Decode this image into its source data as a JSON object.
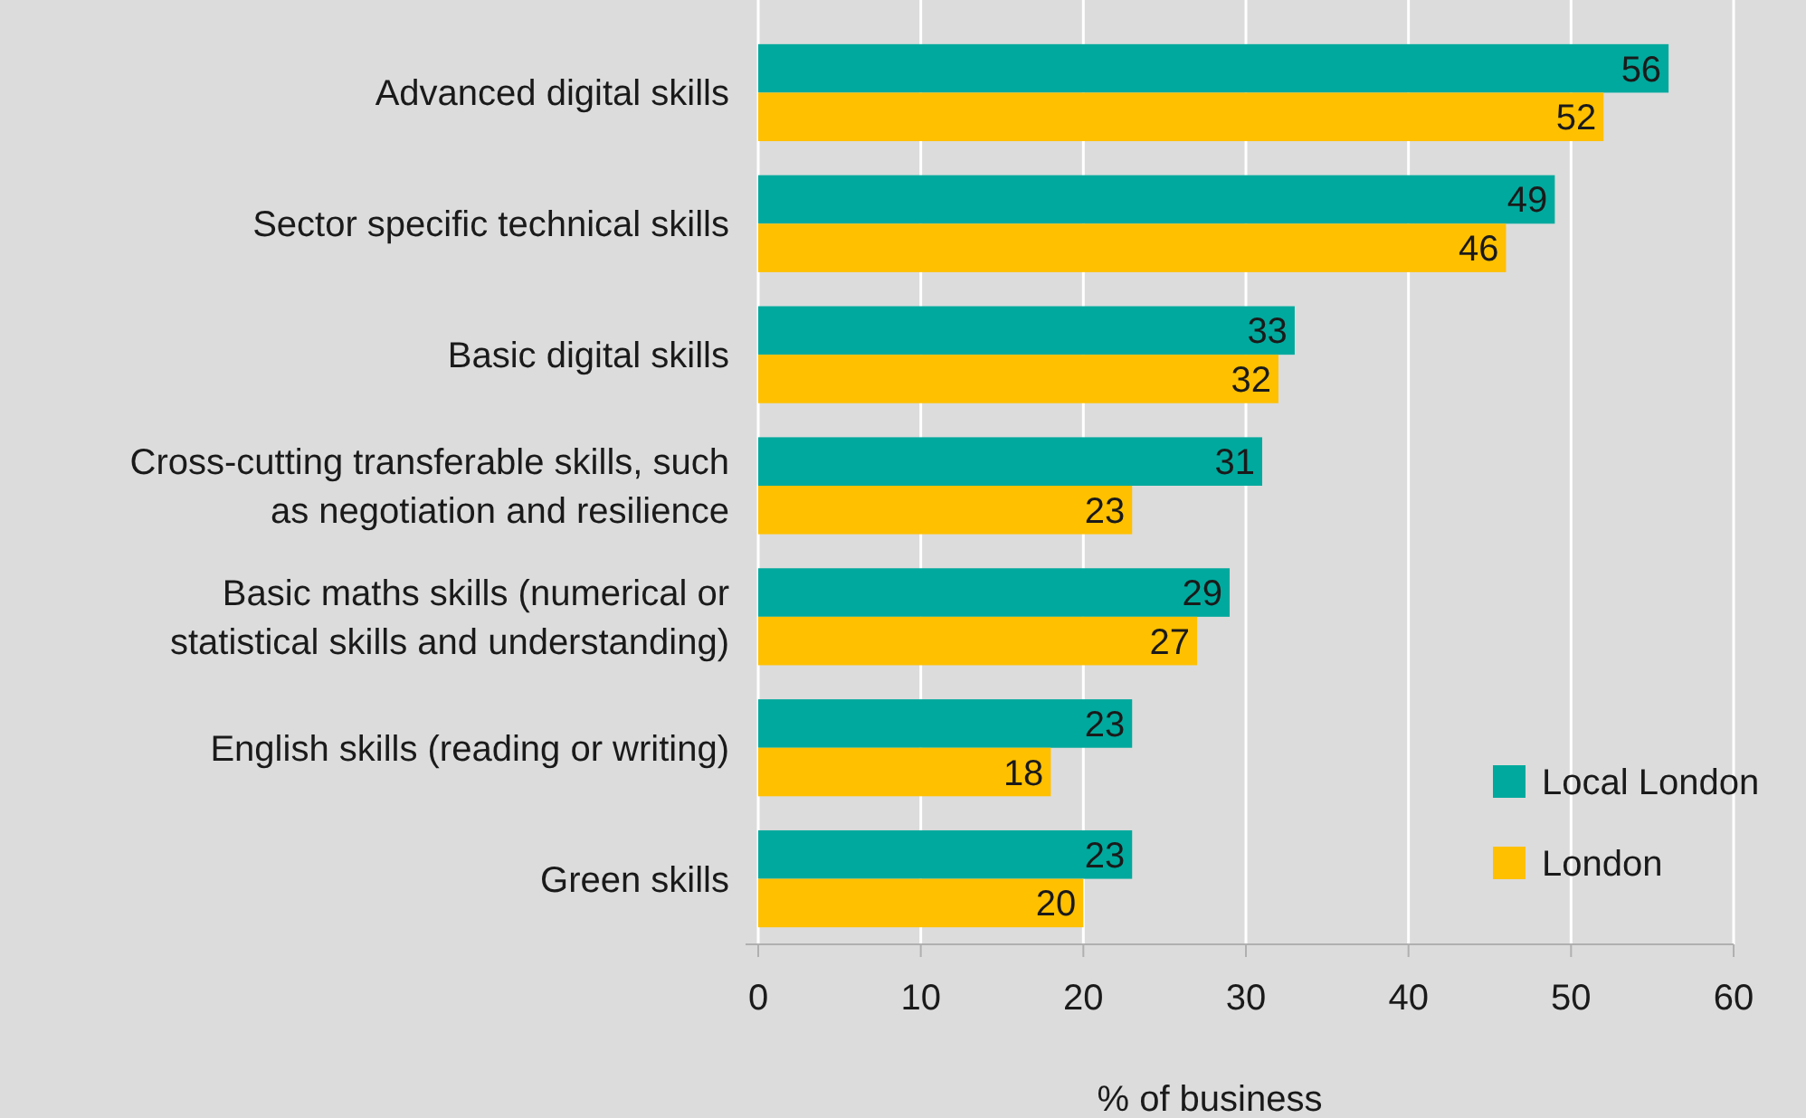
{
  "chart_data": {
    "type": "bar",
    "orientation": "horizontal",
    "xlabel": "% of business",
    "categories": [
      "Advanced digital skills",
      "Sector specific technical skills",
      "Basic digital skills",
      "Cross-cutting transferable skills, such as negotiation and resilience",
      "Basic maths skills (numerical or statistical skills and understanding)",
      "English skills (reading or writing)",
      "Green skills"
    ],
    "series": [
      {
        "name": "Local London",
        "color": "#00a99d",
        "values": [
          56,
          49,
          33,
          31,
          29,
          23,
          23
        ]
      },
      {
        "name": "London",
        "color": "#ffc000",
        "values": [
          52,
          46,
          32,
          23,
          27,
          18,
          20
        ]
      }
    ],
    "xlim": [
      0,
      60
    ],
    "xticks": [
      0,
      10,
      20,
      30,
      40,
      50,
      60
    ],
    "grid": "x",
    "legend": "bottom right",
    "data_labels": true
  }
}
